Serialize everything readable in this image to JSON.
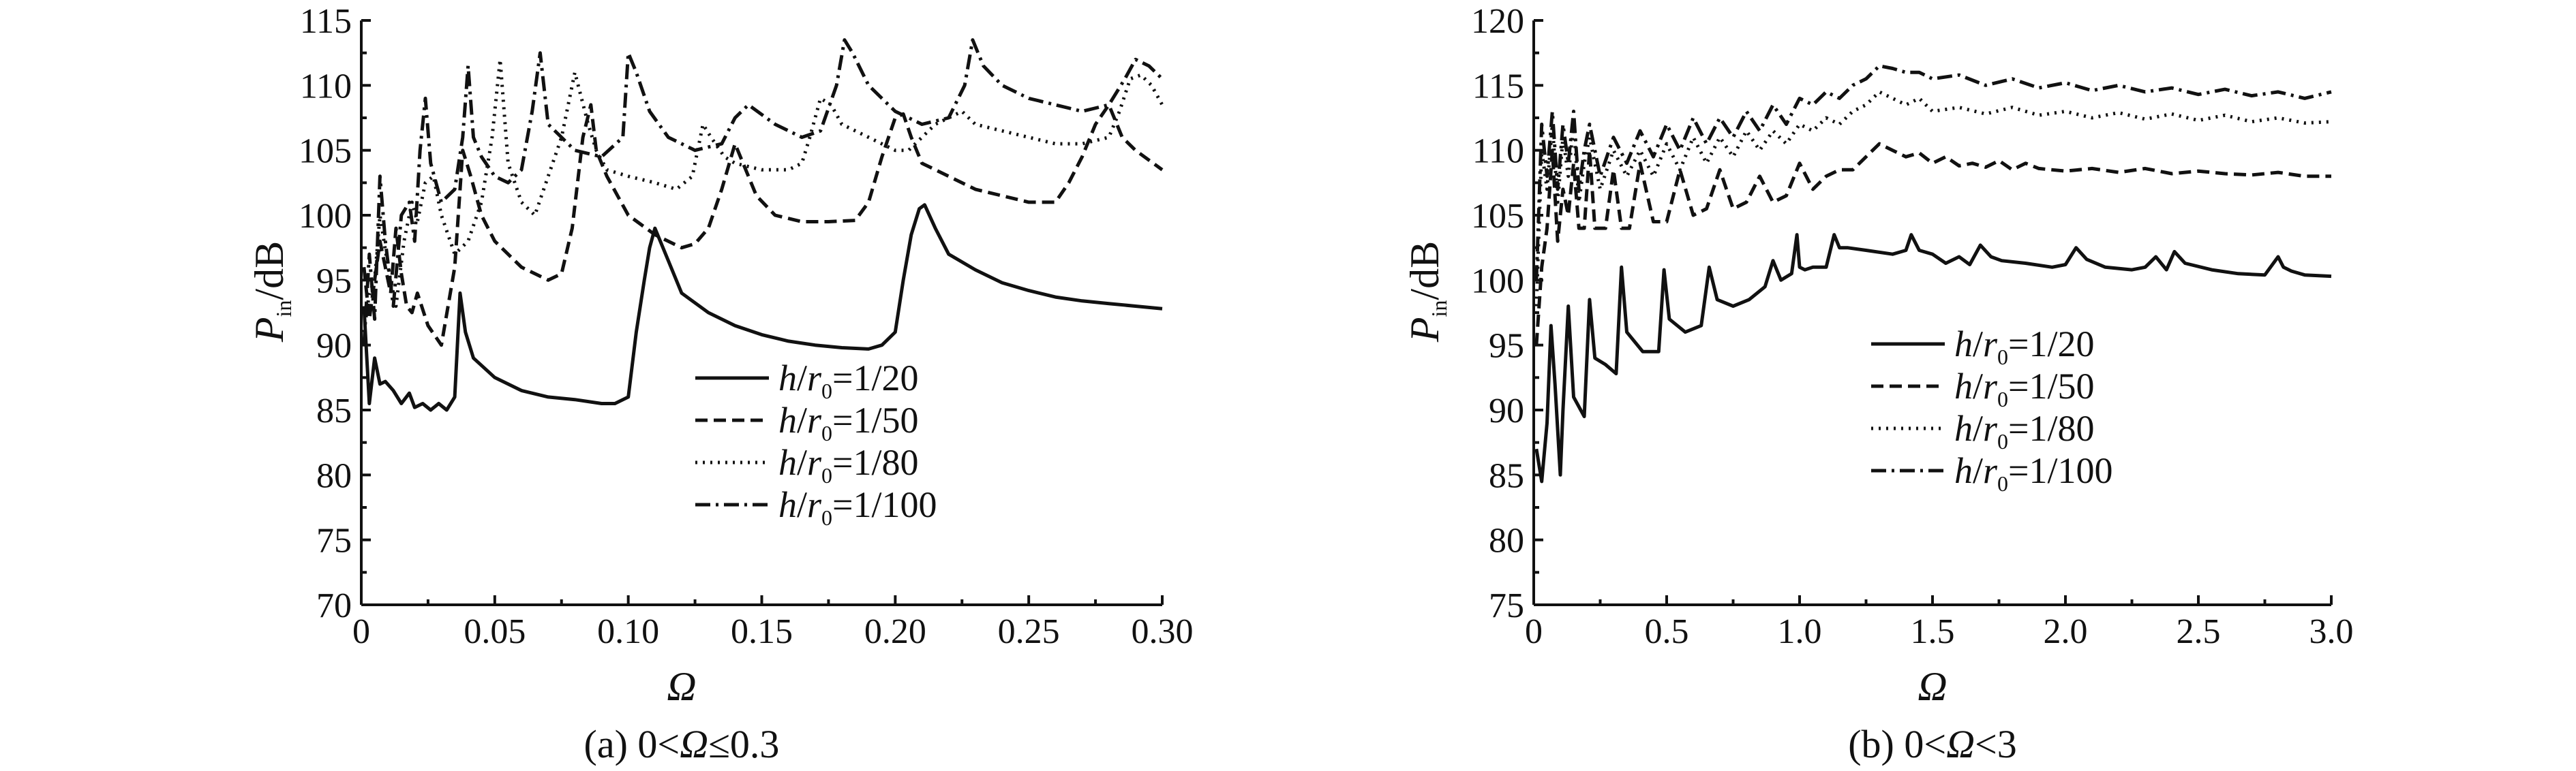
{
  "chart_data": [
    {
      "type": "line",
      "caption": "(a) 0<Ω≤0.3",
      "xlabel": "Ω",
      "ylabel": "P_in /dB",
      "xlim": [
        0,
        0.3
      ],
      "ylim": [
        70,
        115
      ],
      "xticks": [
        "0",
        "0.05",
        "0.10",
        "0.15",
        "0.20",
        "0.25",
        "0.30"
      ],
      "yticks": [
        "70",
        "75",
        "80",
        "85",
        "90",
        "95",
        "100",
        "105",
        "110",
        "115"
      ],
      "legend_position": "center",
      "series": [
        {
          "name": "h/r0=1/20",
          "style": "solid",
          "x": [
            0.001,
            0.003,
            0.005,
            0.007,
            0.009,
            0.012,
            0.015,
            0.018,
            0.02,
            0.023,
            0.026,
            0.029,
            0.032,
            0.035,
            0.037,
            0.039,
            0.042,
            0.05,
            0.06,
            0.07,
            0.08,
            0.09,
            0.095,
            0.1,
            0.103,
            0.106,
            0.108,
            0.11,
            0.115,
            0.12,
            0.13,
            0.14,
            0.15,
            0.16,
            0.17,
            0.18,
            0.19,
            0.195,
            0.2,
            0.203,
            0.206,
            0.209,
            0.211,
            0.215,
            0.22,
            0.23,
            0.24,
            0.25,
            0.26,
            0.27,
            0.28,
            0.29,
            0.3
          ],
          "y": [
            93,
            85.5,
            89,
            87,
            87.2,
            86.5,
            85.5,
            86.3,
            85.2,
            85.5,
            85,
            85.5,
            85,
            86,
            94,
            91,
            89,
            87.5,
            86.5,
            86,
            85.8,
            85.5,
            85.5,
            86,
            91,
            95,
            97.5,
            99,
            96.5,
            94,
            92.5,
            91.5,
            90.8,
            90.3,
            90,
            89.8,
            89.7,
            90,
            91,
            95,
            98.5,
            100.5,
            100.8,
            99,
            97,
            95.8,
            94.8,
            94.2,
            93.7,
            93.4,
            93.2,
            93,
            92.8
          ]
        },
        {
          "name": "h/r0=1/50",
          "style": "dashed",
          "x": [
            0.001,
            0.003,
            0.005,
            0.007,
            0.009,
            0.011,
            0.013,
            0.015,
            0.017,
            0.019,
            0.021,
            0.025,
            0.03,
            0.035,
            0.038,
            0.041,
            0.045,
            0.05,
            0.055,
            0.06,
            0.065,
            0.07,
            0.075,
            0.079,
            0.083,
            0.086,
            0.088,
            0.092,
            0.1,
            0.11,
            0.12,
            0.125,
            0.13,
            0.135,
            0.14,
            0.143,
            0.148,
            0.155,
            0.165,
            0.175,
            0.185,
            0.19,
            0.195,
            0.2,
            0.203,
            0.206,
            0.21,
            0.22,
            0.23,
            0.24,
            0.25,
            0.26,
            0.265,
            0.27,
            0.275,
            0.28,
            0.285,
            0.29,
            0.3
          ],
          "y": [
            96,
            92,
            95,
            98,
            96,
            94,
            99,
            95.5,
            93,
            92.5,
            94,
            91.5,
            90,
            96,
            105,
            103,
            100,
            98,
            97,
            96,
            95.5,
            95,
            95.5,
            99,
            106,
            108.5,
            105,
            103,
            100,
            98.5,
            97.5,
            97.8,
            99,
            102,
            105.5,
            104,
            101.5,
            100,
            99.5,
            99.5,
            99.6,
            101,
            104.5,
            107.5,
            107.8,
            106,
            104,
            103,
            102,
            101.5,
            101,
            101,
            102.5,
            104.5,
            107,
            108.5,
            106,
            105,
            103.5
          ]
        },
        {
          "name": "h/r0=1/80",
          "style": "dotted",
          "x": [
            0.001,
            0.003,
            0.005,
            0.007,
            0.01,
            0.013,
            0.016,
            0.019,
            0.021,
            0.024,
            0.027,
            0.03,
            0.035,
            0.04,
            0.045,
            0.049,
            0.052,
            0.055,
            0.06,
            0.065,
            0.07,
            0.075,
            0.08,
            0.085,
            0.088,
            0.092,
            0.1,
            0.11,
            0.118,
            0.124,
            0.128,
            0.131,
            0.136,
            0.14,
            0.15,
            0.16,
            0.165,
            0.168,
            0.172,
            0.176,
            0.18,
            0.19,
            0.2,
            0.205,
            0.21,
            0.215,
            0.22,
            0.225,
            0.23,
            0.24,
            0.25,
            0.26,
            0.27,
            0.28,
            0.284,
            0.288,
            0.292,
            0.296,
            0.3
          ],
          "y": [
            91,
            94,
            95,
            100,
            96,
            93,
            98,
            101,
            99.5,
            102.5,
            103,
            100,
            97,
            98,
            101,
            106,
            112,
            104,
            101,
            100,
            103,
            106,
            111,
            107,
            105,
            103.5,
            103,
            102.5,
            102,
            103,
            107,
            106,
            104.5,
            104,
            103.5,
            103.5,
            104,
            106,
            109,
            108.5,
            107,
            106,
            105,
            105,
            106,
            107,
            107.5,
            108,
            107,
            106.5,
            106,
            105.5,
            105.5,
            106,
            108,
            110.5,
            110.8,
            110,
            108.5
          ]
        },
        {
          "name": "h/r0=1/100",
          "style": "dashdot",
          "x": [
            0.001,
            0.003,
            0.005,
            0.007,
            0.009,
            0.012,
            0.015,
            0.018,
            0.02,
            0.022,
            0.024,
            0.026,
            0.03,
            0.035,
            0.038,
            0.04,
            0.042,
            0.045,
            0.05,
            0.055,
            0.06,
            0.064,
            0.067,
            0.07,
            0.08,
            0.09,
            0.098,
            0.1,
            0.103,
            0.108,
            0.115,
            0.125,
            0.135,
            0.14,
            0.145,
            0.155,
            0.165,
            0.172,
            0.178,
            0.181,
            0.184,
            0.19,
            0.2,
            0.21,
            0.22,
            0.226,
            0.229,
            0.233,
            0.24,
            0.25,
            0.26,
            0.27,
            0.28,
            0.286,
            0.29,
            0.295,
            0.3
          ],
          "y": [
            90,
            97,
            92,
            103,
            98,
            93,
            100,
            101,
            98,
            105,
            109,
            104,
            101,
            102,
            106,
            111.5,
            106,
            104.5,
            103,
            102.5,
            103.5,
            108,
            112.5,
            107,
            105,
            104.5,
            106,
            112.5,
            111,
            108,
            106,
            105,
            105.5,
            107.5,
            108.5,
            107,
            106,
            106.5,
            110,
            113.5,
            112.5,
            110,
            108,
            107,
            107.5,
            110,
            113.5,
            111.5,
            110,
            109,
            108.5,
            108,
            108.5,
            110.5,
            112,
            111.5,
            110.5
          ]
        }
      ],
      "legend": [
        "h/r0=1/20",
        "h/r0=1/50",
        "h/r0=1/80",
        "h/r0=1/100"
      ]
    },
    {
      "type": "line",
      "caption": "(b) 0<Ω<3",
      "xlabel": "Ω",
      "ylabel": "P_in /dB",
      "xlim": [
        0,
        3.0
      ],
      "ylim": [
        75,
        120
      ],
      "xticks": [
        "0",
        "0.5",
        "1.0",
        "1.5",
        "2.0",
        "2.5",
        "3.0"
      ],
      "yticks": [
        "75",
        "80",
        "85",
        "90",
        "95",
        "100",
        "105",
        "110",
        "115",
        "120"
      ],
      "legend_position": "center-left",
      "series": [
        {
          "name": "h/r0=1/20",
          "style": "solid",
          "x": [
            0.01,
            0.03,
            0.05,
            0.065,
            0.08,
            0.1,
            0.11,
            0.13,
            0.15,
            0.19,
            0.21,
            0.23,
            0.27,
            0.31,
            0.33,
            0.35,
            0.41,
            0.47,
            0.49,
            0.51,
            0.57,
            0.63,
            0.66,
            0.69,
            0.75,
            0.81,
            0.87,
            0.9,
            0.93,
            0.97,
            0.99,
            1.0,
            1.02,
            1.05,
            1.1,
            1.13,
            1.15,
            1.18,
            1.25,
            1.35,
            1.4,
            1.42,
            1.45,
            1.5,
            1.55,
            1.6,
            1.64,
            1.68,
            1.72,
            1.76,
            1.85,
            1.95,
            2.0,
            2.04,
            2.08,
            2.15,
            2.25,
            2.3,
            2.34,
            2.38,
            2.41,
            2.45,
            2.55,
            2.65,
            2.75,
            2.8,
            2.82,
            2.85,
            2.9,
            3.0
          ],
          "y": [
            87,
            84.5,
            89,
            96.5,
            92,
            85,
            90,
            98,
            91,
            89.5,
            98.5,
            94,
            93.5,
            92.8,
            101,
            96,
            94.5,
            94.5,
            100.8,
            97,
            96,
            96.5,
            101,
            98.5,
            98,
            98.5,
            99.5,
            101.5,
            100,
            100.5,
            103.5,
            101,
            100.8,
            101,
            101,
            103.5,
            102.5,
            102.5,
            102.3,
            102,
            102.3,
            103.5,
            102.3,
            102,
            101.3,
            101.8,
            101.2,
            102.7,
            101.8,
            101.5,
            101.3,
            101,
            101.2,
            102.5,
            101.6,
            101,
            100.8,
            101,
            101.8,
            100.8,
            102.2,
            101.3,
            100.8,
            100.5,
            100.4,
            101.8,
            101,
            100.7,
            100.4,
            100.3
          ]
        },
        {
          "name": "h/r0=1/50",
          "style": "dashed",
          "x": [
            0.01,
            0.03,
            0.05,
            0.07,
            0.09,
            0.11,
            0.13,
            0.15,
            0.17,
            0.19,
            0.21,
            0.23,
            0.27,
            0.3,
            0.33,
            0.36,
            0.4,
            0.45,
            0.5,
            0.55,
            0.6,
            0.65,
            0.7,
            0.75,
            0.8,
            0.85,
            0.9,
            0.95,
            1.0,
            1.05,
            1.1,
            1.15,
            1.2,
            1.25,
            1.3,
            1.35,
            1.4,
            1.45,
            1.5,
            1.55,
            1.6,
            1.65,
            1.7,
            1.75,
            1.8,
            1.85,
            1.9,
            2.0,
            2.1,
            2.2,
            2.3,
            2.4,
            2.5,
            2.6,
            2.7,
            2.8,
            2.9,
            3.0
          ],
          "y": [
            95,
            101,
            104,
            110,
            103,
            107,
            105,
            109,
            104,
            104,
            110,
            104,
            104,
            108.5,
            104,
            104,
            109,
            104.5,
            104.5,
            108.5,
            105,
            105.5,
            108.5,
            105.5,
            106,
            108,
            106,
            106.5,
            109,
            107,
            108,
            108.5,
            108.5,
            109.5,
            110.5,
            110,
            109.5,
            109.8,
            109,
            109.5,
            108.8,
            109,
            108.7,
            109.2,
            108.5,
            109,
            108.6,
            108.4,
            108.6,
            108.3,
            108.6,
            108.2,
            108.4,
            108.2,
            108.1,
            108.3,
            108,
            108
          ]
        },
        {
          "name": "h/r0=1/80",
          "style": "dotted",
          "x": [
            0.01,
            0.03,
            0.05,
            0.07,
            0.09,
            0.11,
            0.13,
            0.15,
            0.17,
            0.19,
            0.21,
            0.25,
            0.3,
            0.35,
            0.4,
            0.45,
            0.5,
            0.55,
            0.6,
            0.65,
            0.7,
            0.75,
            0.8,
            0.85,
            0.9,
            0.95,
            1.0,
            1.05,
            1.1,
            1.15,
            1.2,
            1.25,
            1.3,
            1.35,
            1.4,
            1.45,
            1.5,
            1.6,
            1.7,
            1.8,
            1.9,
            2.0,
            2.1,
            2.2,
            2.3,
            2.4,
            2.5,
            2.6,
            2.7,
            2.8,
            2.9,
            3.0
          ],
          "y": [
            98,
            110,
            107,
            112,
            106,
            111,
            108,
            112,
            106,
            109,
            111,
            107,
            110,
            108,
            110,
            108,
            110.5,
            108.5,
            111,
            109,
            111,
            109.5,
            111.5,
            110,
            111.5,
            110.5,
            112,
            111.5,
            112.5,
            112,
            113,
            113.5,
            114.5,
            114,
            113.5,
            114,
            113,
            113.3,
            112.8,
            113.3,
            112.7,
            113,
            112.5,
            112.9,
            112.4,
            112.8,
            112.3,
            112.7,
            112.2,
            112.5,
            112.1,
            112.2
          ]
        },
        {
          "name": "h/r0=1/100",
          "style": "dashdot",
          "x": [
            0.01,
            0.03,
            0.05,
            0.07,
            0.09,
            0.11,
            0.13,
            0.15,
            0.17,
            0.19,
            0.21,
            0.25,
            0.3,
            0.35,
            0.4,
            0.45,
            0.5,
            0.55,
            0.6,
            0.65,
            0.7,
            0.75,
            0.8,
            0.85,
            0.9,
            0.95,
            1.0,
            1.05,
            1.1,
            1.15,
            1.2,
            1.25,
            1.3,
            1.35,
            1.4,
            1.45,
            1.5,
            1.6,
            1.7,
            1.8,
            1.9,
            2.0,
            2.1,
            2.2,
            2.3,
            2.4,
            2.5,
            2.6,
            2.7,
            2.8,
            2.9,
            3.0
          ],
          "y": [
            100,
            112,
            108,
            113,
            107,
            112,
            109,
            113,
            107,
            110,
            112,
            108,
            111,
            109,
            111.5,
            109.5,
            112,
            110,
            112.5,
            110.5,
            112.5,
            111,
            113,
            111.5,
            113.5,
            112,
            114,
            113.5,
            114.5,
            114,
            115,
            115.5,
            116.5,
            116.3,
            116,
            116,
            115.5,
            115.8,
            115,
            115.5,
            114.8,
            115.2,
            114.6,
            115,
            114.5,
            114.8,
            114.3,
            114.7,
            114.2,
            114.5,
            114,
            114.5
          ]
        }
      ],
      "legend": [
        "h/r0=1/20",
        "h/r0=1/50",
        "h/r0=1/80",
        "h/r0=1/100"
      ]
    }
  ],
  "captions": {
    "a": {
      "prefix": "(a) 0<",
      "omega": "Ω",
      "suffix": "≤0.3"
    },
    "b": {
      "prefix": "(b) 0<",
      "omega": "Ω",
      "suffix": "<3"
    }
  },
  "axis_labels": {
    "x": "Ω",
    "y_main": "P",
    "y_sub": "in",
    "y_unit": "/dB"
  },
  "legend_parts": {
    "h": "h",
    "slash": "/",
    "r": "r",
    "sub": "0",
    "values": [
      "=1/20",
      "=1/50",
      "=1/80",
      "=1/100"
    ]
  }
}
